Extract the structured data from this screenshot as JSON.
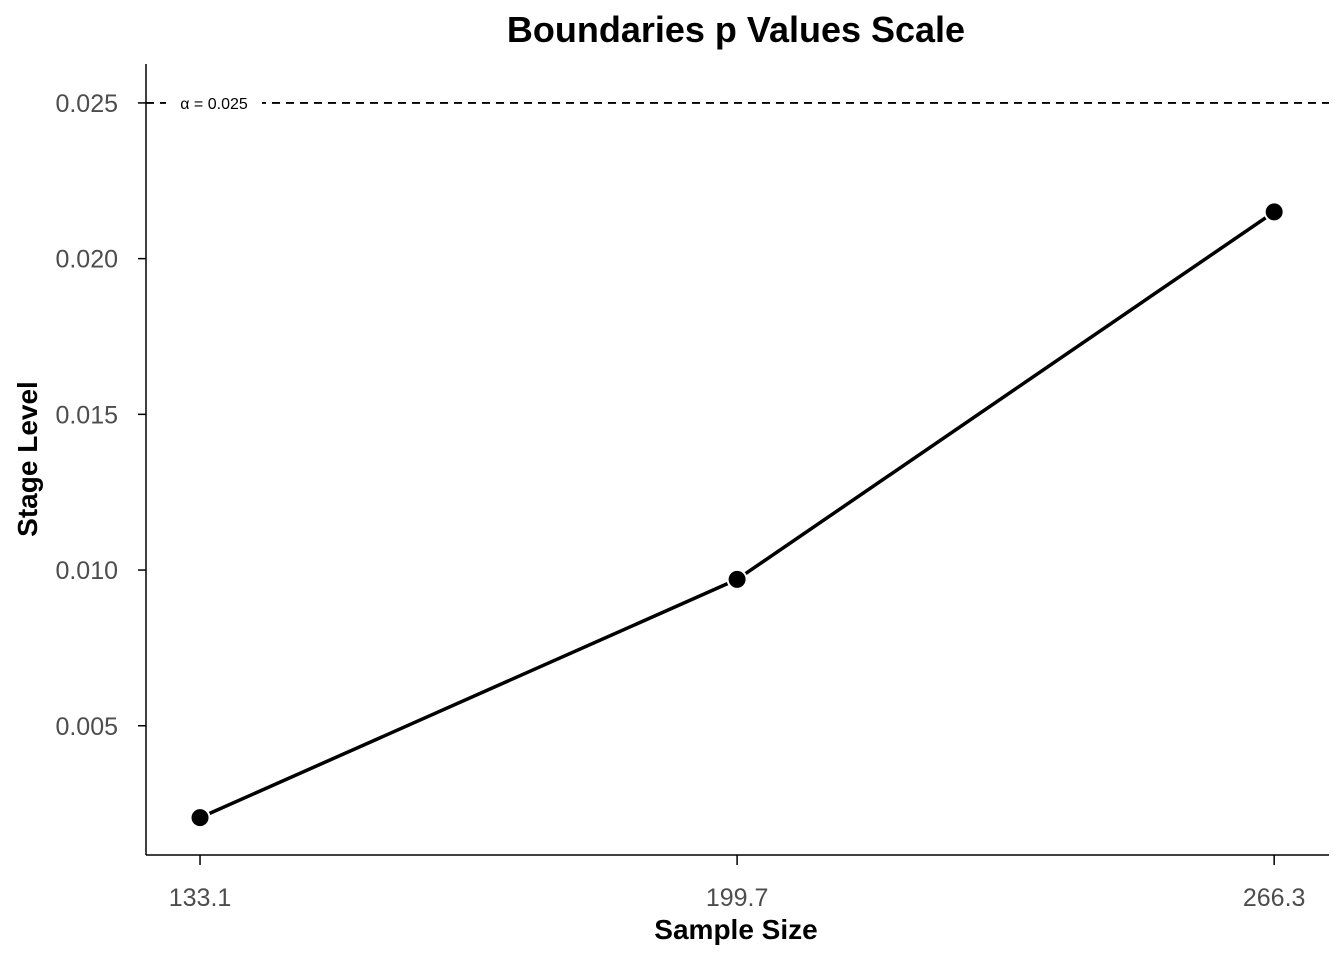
{
  "chart_data": {
    "type": "line",
    "title": "Boundaries p Values Scale",
    "xlabel": "Sample Size",
    "ylabel": "Stage Level",
    "x": [
      133.1,
      199.7,
      266.3
    ],
    "x_tick_labels": [
      "133.1",
      "199.7",
      "266.3"
    ],
    "series": [
      {
        "values": [
          0.00205,
          0.0097,
          0.0215
        ]
      }
    ],
    "y_ticks": [
      0.005,
      0.01,
      0.015,
      0.02,
      0.025
    ],
    "y_tick_labels": [
      "0.005",
      "0.010",
      "0.015",
      "0.020",
      "0.025"
    ],
    "xlim": [
      126.4,
      273.1
    ],
    "ylim": [
      0.00085,
      0.02625
    ],
    "reference_line": {
      "y": 0.025,
      "label": "α = 0.025",
      "style": "dashed"
    },
    "grid": false,
    "legend": "none",
    "colors": {
      "line": "#000000",
      "marker": "#000000",
      "marker_outline": "#ffffff",
      "tick_text": "#4d4d4d"
    }
  }
}
